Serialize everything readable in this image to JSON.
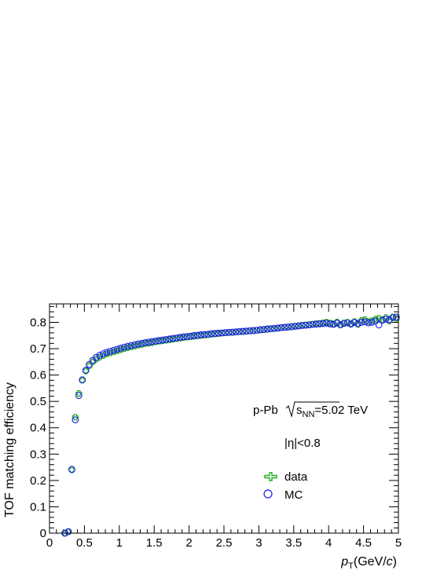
{
  "chart_data": {
    "type": "scatter",
    "xlabel_var": "p",
    "xlabel_sub": "T",
    "xlabel_unit_pre": "(GeV/",
    "xlabel_unit_c": "c",
    "xlabel_unit_post": ")",
    "ylabel": "TOF matching efficiency",
    "xlim": [
      0,
      5
    ],
    "ylim": [
      0,
      0.87
    ],
    "xticks": [
      "0",
      "0.5",
      "1",
      "1.5",
      "2",
      "2.5",
      "3",
      "3.5",
      "4",
      "4.5",
      "5"
    ],
    "yticks": [
      "0",
      "0.1",
      "0.2",
      "0.3",
      "0.4",
      "0.5",
      "0.6",
      "0.7",
      "0.8"
    ],
    "grid": false,
    "legend_position": "center-right",
    "annotations": {
      "system": "p-Pb",
      "energy_var": "s",
      "energy_sub": "NN",
      "energy_value": "=5.02 TeV",
      "eta_cut": "|η|<0.8"
    },
    "series": [
      {
        "name": "data",
        "marker": "open-cross",
        "color": "#22aa22",
        "x": [
          0.22,
          0.27,
          0.32,
          0.37,
          0.42,
          0.47,
          0.52,
          0.57,
          0.62,
          0.67,
          0.72,
          0.77,
          0.82,
          0.87,
          0.92,
          0.97,
          1.02,
          1.07,
          1.12,
          1.17,
          1.22,
          1.27,
          1.32,
          1.37,
          1.42,
          1.47,
          1.52,
          1.57,
          1.62,
          1.67,
          1.72,
          1.77,
          1.82,
          1.87,
          1.92,
          1.97,
          2.02,
          2.07,
          2.12,
          2.17,
          2.22,
          2.27,
          2.32,
          2.37,
          2.42,
          2.47,
          2.52,
          2.57,
          2.62,
          2.67,
          2.72,
          2.77,
          2.82,
          2.87,
          2.92,
          2.97,
          3.02,
          3.07,
          3.12,
          3.17,
          3.22,
          3.27,
          3.32,
          3.37,
          3.42,
          3.47,
          3.52,
          3.57,
          3.62,
          3.67,
          3.72,
          3.77,
          3.82,
          3.87,
          3.92,
          3.97,
          4.02,
          4.07,
          4.12,
          4.17,
          4.22,
          4.27,
          4.32,
          4.37,
          4.42,
          4.47,
          4.52,
          4.57,
          4.62,
          4.67,
          4.72,
          4.77,
          4.82,
          4.87,
          4.92,
          4.97
        ],
        "y": [
          0.0,
          0.005,
          0.24,
          0.44,
          0.53,
          0.58,
          0.615,
          0.635,
          0.65,
          0.66,
          0.668,
          0.674,
          0.68,
          0.684,
          0.688,
          0.692,
          0.696,
          0.7,
          0.704,
          0.707,
          0.71,
          0.713,
          0.716,
          0.719,
          0.721,
          0.723,
          0.726,
          0.728,
          0.73,
          0.732,
          0.734,
          0.736,
          0.738,
          0.74,
          0.742,
          0.744,
          0.745,
          0.747,
          0.749,
          0.75,
          0.752,
          0.753,
          0.755,
          0.756,
          0.757,
          0.759,
          0.76,
          0.761,
          0.762,
          0.763,
          0.764,
          0.765,
          0.766,
          0.767,
          0.768,
          0.77,
          0.771,
          0.772,
          0.774,
          0.775,
          0.776,
          0.778,
          0.78,
          0.781,
          0.782,
          0.784,
          0.786,
          0.787,
          0.789,
          0.79,
          0.791,
          0.793,
          0.795,
          0.796,
          0.798,
          0.8,
          0.797,
          0.795,
          0.801,
          0.79,
          0.798,
          0.8,
          0.795,
          0.803,
          0.792,
          0.807,
          0.81,
          0.802,
          0.806,
          0.812,
          0.815,
          0.81,
          0.818,
          0.805,
          0.82,
          0.815
        ]
      },
      {
        "name": "MC",
        "marker": "open-circle",
        "color": "#1a1aee",
        "x": [
          0.22,
          0.27,
          0.32,
          0.37,
          0.42,
          0.47,
          0.52,
          0.57,
          0.62,
          0.67,
          0.72,
          0.77,
          0.82,
          0.87,
          0.92,
          0.97,
          1.02,
          1.07,
          1.12,
          1.17,
          1.22,
          1.27,
          1.32,
          1.37,
          1.42,
          1.47,
          1.52,
          1.57,
          1.62,
          1.67,
          1.72,
          1.77,
          1.82,
          1.87,
          1.92,
          1.97,
          2.02,
          2.07,
          2.12,
          2.17,
          2.22,
          2.27,
          2.32,
          2.37,
          2.42,
          2.47,
          2.52,
          2.57,
          2.62,
          2.67,
          2.72,
          2.77,
          2.82,
          2.87,
          2.92,
          2.97,
          3.02,
          3.07,
          3.12,
          3.17,
          3.22,
          3.27,
          3.32,
          3.37,
          3.42,
          3.47,
          3.52,
          3.57,
          3.62,
          3.67,
          3.72,
          3.77,
          3.82,
          3.87,
          3.92,
          3.97,
          4.02,
          4.07,
          4.12,
          4.17,
          4.22,
          4.27,
          4.32,
          4.37,
          4.42,
          4.47,
          4.52,
          4.57,
          4.62,
          4.67,
          4.72,
          4.77,
          4.82,
          4.87,
          4.92,
          4.97
        ],
        "y": [
          0.0,
          0.006,
          0.242,
          0.43,
          0.522,
          0.582,
          0.618,
          0.64,
          0.656,
          0.667,
          0.675,
          0.681,
          0.686,
          0.69,
          0.694,
          0.698,
          0.702,
          0.706,
          0.709,
          0.712,
          0.715,
          0.718,
          0.72,
          0.723,
          0.725,
          0.727,
          0.729,
          0.731,
          0.733,
          0.735,
          0.737,
          0.739,
          0.741,
          0.743,
          0.745,
          0.746,
          0.748,
          0.75,
          0.751,
          0.753,
          0.754,
          0.755,
          0.757,
          0.758,
          0.759,
          0.76,
          0.761,
          0.762,
          0.763,
          0.764,
          0.765,
          0.766,
          0.767,
          0.768,
          0.769,
          0.77,
          0.772,
          0.773,
          0.775,
          0.776,
          0.777,
          0.778,
          0.78,
          0.781,
          0.782,
          0.783,
          0.785,
          0.786,
          0.788,
          0.789,
          0.79,
          0.792,
          0.793,
          0.794,
          0.795,
          0.797,
          0.794,
          0.792,
          0.797,
          0.791,
          0.796,
          0.798,
          0.793,
          0.8,
          0.795,
          0.8,
          0.802,
          0.798,
          0.8,
          0.805,
          0.79,
          0.808,
          0.812,
          0.81,
          0.818,
          0.82
        ]
      }
    ]
  }
}
